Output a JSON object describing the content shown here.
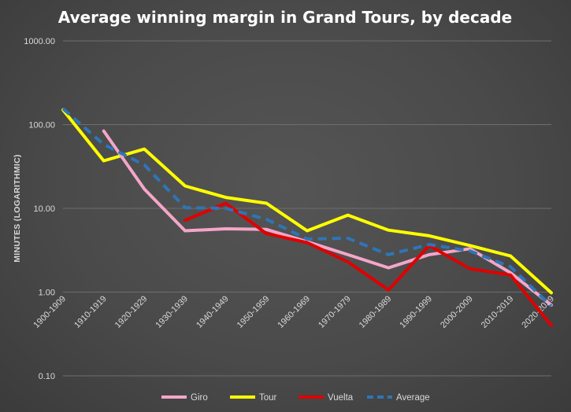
{
  "chart_data": {
    "type": "line",
    "title": "Average winning margin in Grand Tours, by decade",
    "ylabel": "MINUTES (LOGARITHMIC)",
    "xlabel": "",
    "y_scale": "log",
    "ylim": [
      0.1,
      1000
    ],
    "y_ticks": [
      "0.10",
      "1.00",
      "10.00",
      "100.00",
      "1000.00"
    ],
    "grid": true,
    "legend_position": "bottom",
    "categories": [
      "1900-1909",
      "1910-1919",
      "1920-1929",
      "1930-1939",
      "1940-1949",
      "1950-1959",
      "1960-1969",
      "1970-1979",
      "1980-1989",
      "1990-1999",
      "2000-2009",
      "2010-2019",
      "2020-2029"
    ],
    "series": [
      {
        "name": "Giro",
        "color": "#f4a6c8",
        "dash": false,
        "values": [
          null,
          84,
          17,
          5.4,
          5.7,
          5.6,
          4.0,
          2.8,
          1.95,
          2.8,
          3.3,
          1.7,
          0.7
        ]
      },
      {
        "name": "Tour",
        "color": "#ffff00",
        "dash": false,
        "values": [
          150,
          37,
          51,
          18.5,
          13.5,
          11.5,
          5.4,
          8.3,
          5.5,
          4.7,
          3.6,
          2.7,
          0.98
        ]
      },
      {
        "name": "Vuelta",
        "color": "#e00000",
        "dash": false,
        "values": [
          null,
          null,
          null,
          7.2,
          11.5,
          5.0,
          3.9,
          2.3,
          1.06,
          3.6,
          1.9,
          1.6,
          0.4
        ]
      },
      {
        "name": "Average",
        "color": "#2e75b6",
        "dash": true,
        "values": [
          155,
          58,
          33,
          10.2,
          10.0,
          7.4,
          4.3,
          4.4,
          2.8,
          3.7,
          3.1,
          2.0,
          0.68
        ]
      }
    ]
  }
}
